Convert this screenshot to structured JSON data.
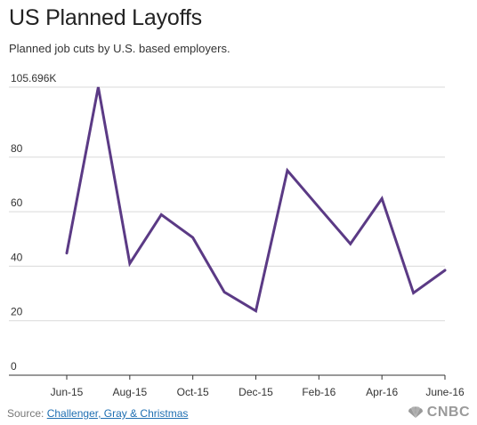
{
  "header": {
    "title": "US Planned Layoffs",
    "subtitle": "Planned job cuts by U.S. based employers."
  },
  "footer": {
    "source_label": "Source: ",
    "source_link": "Challenger, Gray & Christmas",
    "logo_text": "CNBC",
    "logo_icon": "peacock-icon"
  },
  "colors": {
    "line": "#5b3a85",
    "grid": "#d9d9d9",
    "axis": "#333333",
    "text": "#333333"
  },
  "chart_data": {
    "type": "line",
    "title": "US Planned Layoffs",
    "subtitle": "Planned job cuts by U.S. based employers.",
    "xlabel": "",
    "ylabel": "",
    "ylim": [
      0,
      105.696
    ],
    "y_ticks": [
      {
        "value": 0,
        "label": "0"
      },
      {
        "value": 20,
        "label": "20"
      },
      {
        "value": 40,
        "label": "40"
      },
      {
        "value": 60,
        "label": "60"
      },
      {
        "value": 80,
        "label": "80"
      },
      {
        "value": 105.696,
        "label": "105.696K"
      }
    ],
    "x": [
      "2015-06",
      "2015-07",
      "2015-08",
      "2015-09",
      "2015-10",
      "2015-11",
      "2015-12",
      "2016-01",
      "2016-02",
      "2016-03",
      "2016-04",
      "2016-05",
      "2016-06"
    ],
    "x_ticks": [
      {
        "index": 0,
        "label": "Jun-15"
      },
      {
        "index": 2,
        "label": "Aug-15"
      },
      {
        "index": 4,
        "label": "Oct-15"
      },
      {
        "index": 6,
        "label": "Dec-15"
      },
      {
        "index": 8,
        "label": "Feb-16"
      },
      {
        "index": 10,
        "label": "Apr-16"
      },
      {
        "index": 12,
        "label": "June-16"
      }
    ],
    "series": [
      {
        "values": [
          44.8,
          105.7,
          41.0,
          58.9,
          50.5,
          30.5,
          23.6,
          75.1,
          61.6,
          48.2,
          64.8,
          30.2,
          38.5
        ]
      }
    ],
    "grid": true,
    "legend": "none"
  }
}
